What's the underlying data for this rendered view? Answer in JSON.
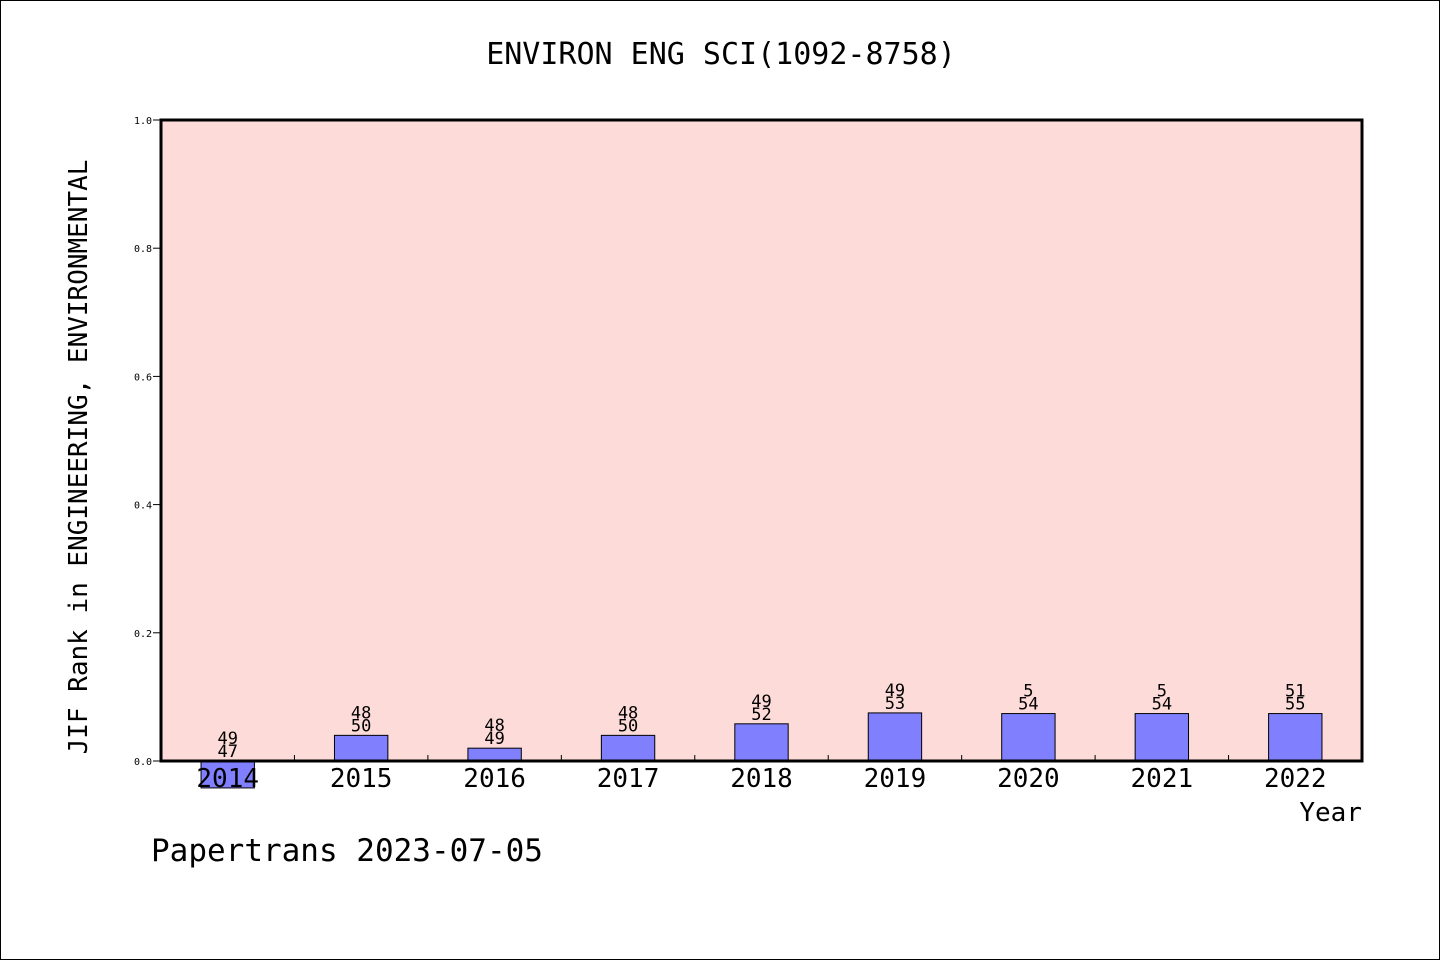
{
  "chart_data": {
    "type": "bar",
    "title": "ENVIRON ENG SCI(1092-8758)",
    "xlabel": "Year",
    "ylabel": "JIF Rank in ENGINEERING, ENVIRONMENTAL",
    "ylim": [
      0.0,
      1.0
    ],
    "yticks": [
      "0.0",
      "0.2",
      "0.4",
      "0.6",
      "0.8",
      "1.0"
    ],
    "categories": [
      "2014",
      "2015",
      "2016",
      "2017",
      "2018",
      "2019",
      "2020",
      "2021",
      "2022"
    ],
    "values": [
      -0.042,
      0.04,
      0.02,
      0.04,
      0.058,
      0.075,
      0.074,
      0.074,
      0.074
    ],
    "rank_labels": [
      "49",
      "48",
      "48",
      "48",
      "49",
      "49",
      "5",
      "5",
      "51"
    ],
    "total_labels": [
      "47",
      "50",
      "49",
      "50",
      "52",
      "53",
      "54",
      "54",
      "55"
    ],
    "grid": false,
    "plot_background": "#fddbd8",
    "bar_color": "#8080ff"
  },
  "footer": {
    "text": "Papertrans 2023-07-05"
  }
}
